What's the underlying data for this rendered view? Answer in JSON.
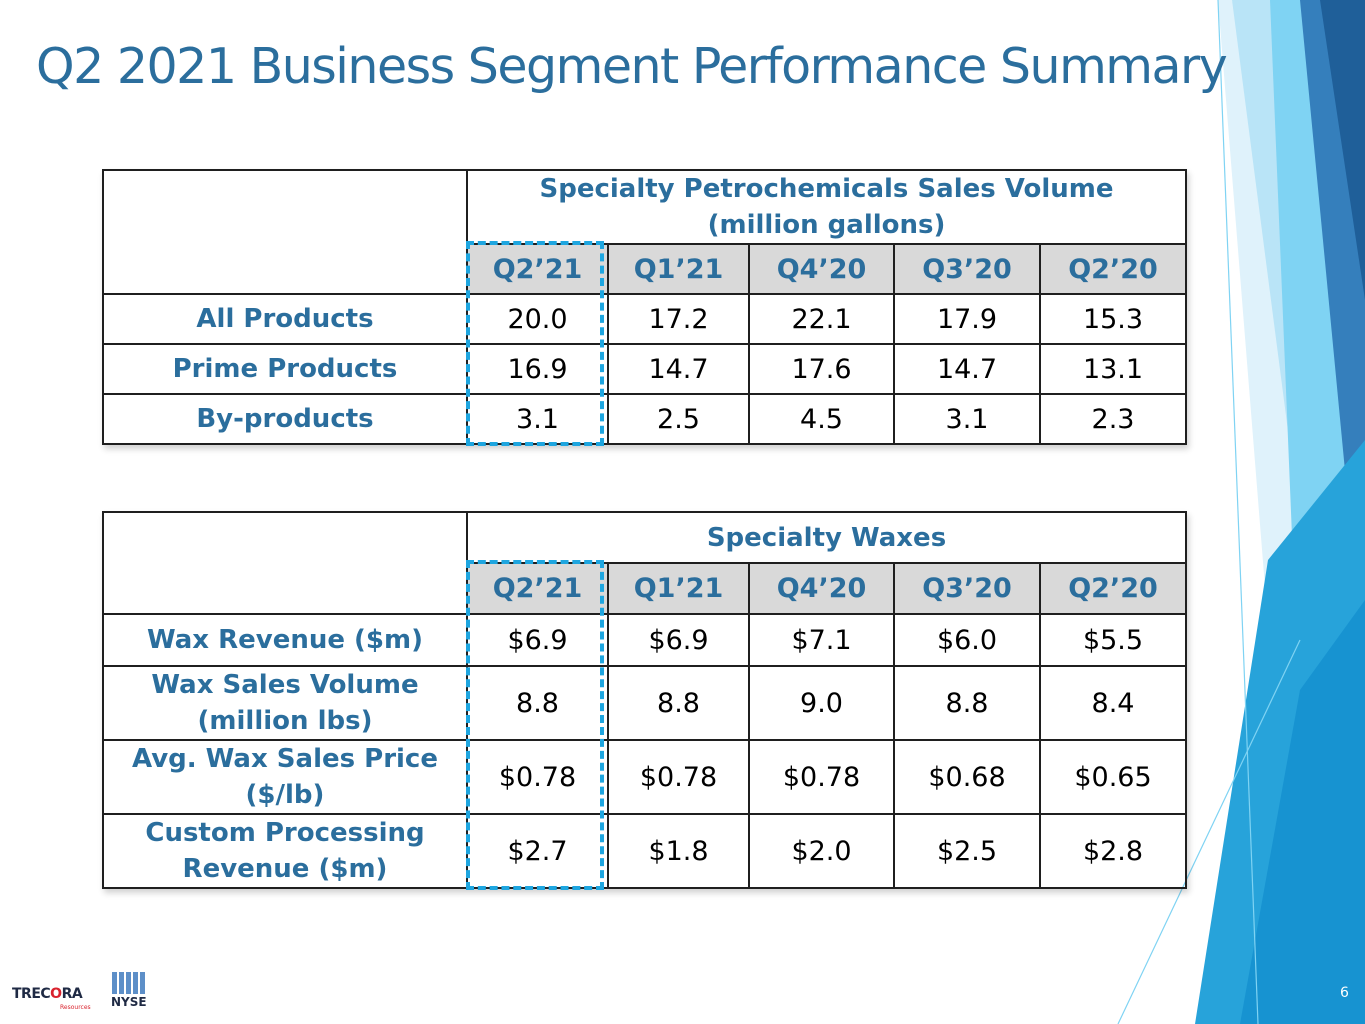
{
  "title": "Q2 2021 Business Segment Performance Summary",
  "page_number": "6",
  "colors": {
    "title": "#2b6e9d",
    "header_fill": "#d9d9d9",
    "highlight": "#1ea6e0",
    "accent_dark": "#2e75b6",
    "accent_light": "#7fd3f3"
  },
  "logos": {
    "trecora": {
      "name": "TRECORA",
      "sub": "Resources"
    },
    "nyse": {
      "name": "NYSE"
    }
  },
  "table1": {
    "title_line1": "Specialty Petrochemicals Sales Volume",
    "title_line2": "(million gallons)",
    "quarters": [
      "Q2’21",
      "Q1’21",
      "Q4’20",
      "Q3’20",
      "Q2’20"
    ],
    "rows": [
      {
        "label": "All Products",
        "values": [
          "20.0",
          "17.2",
          "22.1",
          "17.9",
          "15.3"
        ]
      },
      {
        "label": "Prime Products",
        "values": [
          "16.9",
          "14.7",
          "17.6",
          "14.7",
          "13.1"
        ]
      },
      {
        "label": "By-products",
        "values": [
          "3.1",
          "2.5",
          "4.5",
          "3.1",
          "2.3"
        ]
      }
    ]
  },
  "table2": {
    "title": "Specialty Waxes",
    "quarters": [
      "Q2’21",
      "Q1’21",
      "Q4’20",
      "Q3’20",
      "Q2’20"
    ],
    "rows": [
      {
        "label_line1": "Wax Revenue ($m)",
        "label_line2": "",
        "values": [
          "$6.9",
          "$6.9",
          "$7.1",
          "$6.0",
          "$5.5"
        ]
      },
      {
        "label_line1": "Wax Sales Volume",
        "label_line2": "(million lbs)",
        "values": [
          "8.8",
          "8.8",
          "9.0",
          "8.8",
          "8.4"
        ]
      },
      {
        "label_line1": "Avg. Wax Sales Price",
        "label_line2": "($/lb)",
        "values": [
          "$0.78",
          "$0.78",
          "$0.78",
          "$0.68",
          "$0.65"
        ]
      },
      {
        "label_line1": "Custom Processing",
        "label_line2": "Revenue ($m)",
        "values": [
          "$2.7",
          "$1.8",
          "$2.0",
          "$2.5",
          "$2.8"
        ]
      }
    ]
  }
}
